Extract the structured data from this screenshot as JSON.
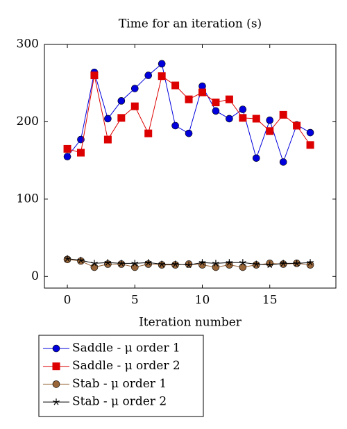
{
  "chart_data": {
    "type": "line",
    "title": "Time for an iteration (s)",
    "x_label": "Iteration number",
    "x": [
      0,
      1,
      2,
      3,
      4,
      5,
      6,
      7,
      8,
      9,
      10,
      11,
      12,
      13,
      14,
      15,
      16,
      17,
      18
    ],
    "xlim": [
      -1.7,
      19.9
    ],
    "xticks": [
      0,
      5,
      10,
      15
    ],
    "ylim": [
      -15,
      300
    ],
    "yticks": [
      0,
      100,
      200,
      300
    ],
    "grid": false,
    "legend": "below-left",
    "series": [
      {
        "name": "Saddle - μ order 1",
        "color": "#0000dd",
        "marker": "circle",
        "values": [
          155,
          177,
          264,
          204,
          227,
          243,
          260,
          275,
          195,
          185,
          246,
          214,
          204,
          216,
          153,
          202,
          148,
          196,
          186
        ]
      },
      {
        "name": "Saddle - μ order 2",
        "color": "#dd0000",
        "marker": "square",
        "values": [
          165,
          160,
          260,
          177,
          205,
          220,
          185,
          259,
          247,
          229,
          238,
          225,
          229,
          205,
          204,
          188,
          209,
          195,
          170
        ]
      },
      {
        "name": "Stab - μ order 1",
        "color": "#99663a",
        "marker": "circle",
        "values": [
          22,
          20,
          12,
          16,
          16,
          12,
          16,
          15,
          15,
          16,
          15,
          12,
          15,
          12,
          15,
          17,
          16,
          17,
          15
        ]
      },
      {
        "name": "Stab - μ order 2",
        "color": "#000000",
        "marker": "star",
        "values": [
          23,
          21,
          17,
          18,
          17,
          17,
          18,
          16,
          16,
          15,
          18,
          17,
          18,
          18,
          16,
          15,
          17,
          17,
          18
        ]
      }
    ]
  }
}
